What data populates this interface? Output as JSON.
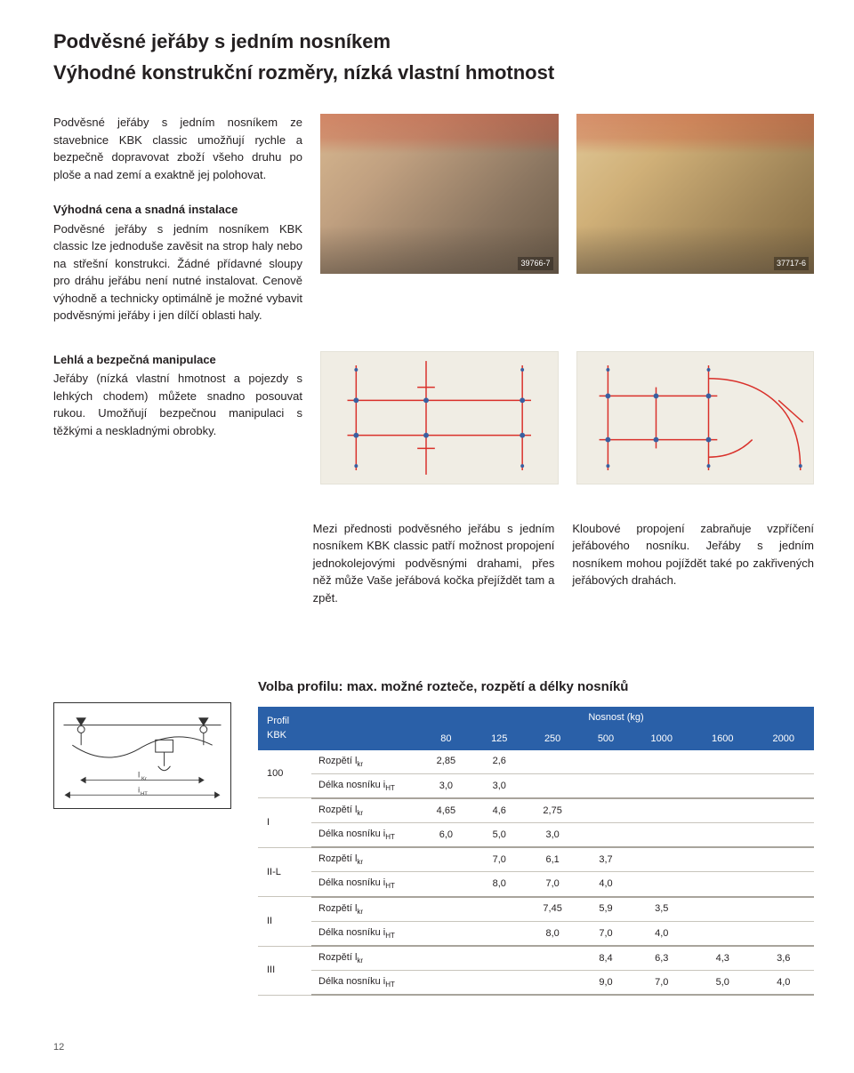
{
  "header": {
    "title": "Podvěsné jeřáby s jedním nosníkem",
    "subtitle": "Výhodné konstrukční rozměry, nízká vlastní hmotnost"
  },
  "intro": "Podvěsné jeřáby s jedním nosníkem ze stavebnice KBK classic umožňují rychle a bezpečně dopravovat zboží všeho druhu po ploše a nad zemí a exaktně jej polohovat.",
  "section1": {
    "heading": "Výhodná cena a snadná instalace",
    "body": "Podvěsné jeřáby s jedním nosníkem KBK classic lze jednoduše zavěsit na strop haly nebo na střešní konstrukci. Žádné přídavné sloupy pro dráhu jeřábu není nutné instalovat. Cenově výhodně a technicky optimálně je možné vybavit podvěsnými jeřáby i jen dílčí oblasti haly."
  },
  "photos": {
    "left_caption": "39766-7",
    "right_caption": "37717-6"
  },
  "section2": {
    "heading": "Lehlá a bezpečná manipulace",
    "body": "Jeřáby (nízká vlastní hmotnost a pojezdy s lehkých chodem) můžete snadno posouvat rukou. Umožňují bezpečnou manipulaci s těžkými a neskladnými obrobky."
  },
  "middle_para": "Mezi přednosti podvěsného jeřábu s jedním nosníkem KBK classic patří možnost propojení jednokolejovými podvěsnými drahami, přes něž může Vaše jeřábová kočka přejíždět tam a zpět.",
  "right_para": "Kloubové propojení zabraňuje vzpříčení jeřábového nosníku. Jeřáby s jedním nosníkem mohou pojíždět také po zakřivených jeřábových drahách.",
  "table": {
    "title": "Volba profilu: max. možné rozteče, rozpětí a délky nosníků",
    "header_profil": "Profil\nKBK",
    "header_nosnost": "Nosnost (kg)",
    "loads": [
      "80",
      "125",
      "250",
      "500",
      "1000",
      "1600",
      "2000"
    ],
    "metric_rozpeti": "Rozpětí l",
    "metric_rozpeti_sub": "kr",
    "metric_delka": "Délka nosníku i",
    "metric_delka_sub": "HT",
    "rows": [
      {
        "profil": "100",
        "rozpeti": [
          "2,85",
          "2,6",
          "",
          "",
          "",
          "",
          ""
        ],
        "delka": [
          "3,0",
          "3,0",
          "",
          "",
          "",
          "",
          ""
        ]
      },
      {
        "profil": "I",
        "rozpeti": [
          "4,65",
          "4,6",
          "2,75",
          "",
          "",
          "",
          ""
        ],
        "delka": [
          "6,0",
          "5,0",
          "3,0",
          "",
          "",
          "",
          ""
        ]
      },
      {
        "profil": "II-L",
        "rozpeti": [
          "",
          "7,0",
          "6,1",
          "3,7",
          "",
          "",
          ""
        ],
        "delka": [
          "",
          "8,0",
          "7,0",
          "4,0",
          "",
          "",
          ""
        ]
      },
      {
        "profil": "II",
        "rozpeti": [
          "",
          "",
          "7,45",
          "5,9",
          "3,5",
          "",
          ""
        ],
        "delka": [
          "",
          "",
          "8,0",
          "7,0",
          "4,0",
          "",
          ""
        ]
      },
      {
        "profil": "III",
        "rozpeti": [
          "",
          "",
          "",
          "8,4",
          "6,3",
          "4,3",
          "3,6"
        ],
        "delka": [
          "",
          "",
          "",
          "9,0",
          "7,0",
          "5,0",
          "4,0"
        ]
      }
    ]
  },
  "schematic_labels": {
    "lkr": "l",
    "lkr_sub": "Kr",
    "iht": "i",
    "iht_sub": "HT"
  },
  "diagram_colors": {
    "bg": "#f0ede4",
    "line": "#d9302a",
    "dot": "#3a5fa0"
  },
  "page_number": "12"
}
